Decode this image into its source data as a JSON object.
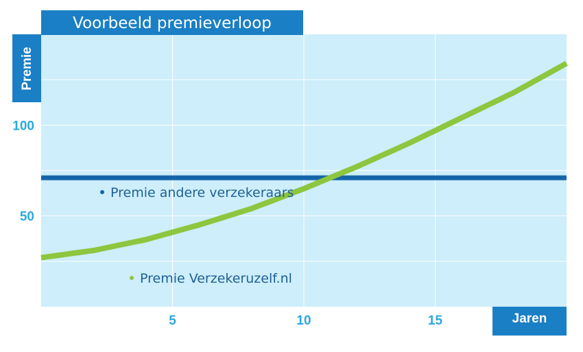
{
  "colors": {
    "plot_bg": "#cdeefa",
    "grid": "#ffffff",
    "accent_blue": "#1a7fc4",
    "line_blue": "#1565a8",
    "line_green": "#8dc63f",
    "tick_text": "#2aa8dd",
    "legend_text": "#1f5f95",
    "label_text": "#ffffff"
  },
  "chart_data": {
    "type": "line",
    "title": "Voorbeeld premieverloop",
    "xlabel": "Jaren",
    "ylabel": "Premie",
    "xlim": [
      0,
      20
    ],
    "ylim": [
      0,
      150
    ],
    "x_ticks": [
      5,
      10,
      15
    ],
    "y_ticks": [
      50,
      100
    ],
    "grid": true,
    "series": [
      {
        "name": "Premie andere verzekeraars",
        "color": "#1565a8",
        "x": [
          0,
          20
        ],
        "y": [
          71,
          71
        ]
      },
      {
        "name": "Premie Verzekeruzelf.nl",
        "color": "#8dc63f",
        "x": [
          0,
          2,
          4,
          6,
          8,
          10,
          12,
          14,
          16,
          18,
          20
        ],
        "y": [
          27,
          31,
          37,
          45,
          54,
          65,
          77,
          90,
          104,
          118,
          134
        ]
      }
    ]
  }
}
